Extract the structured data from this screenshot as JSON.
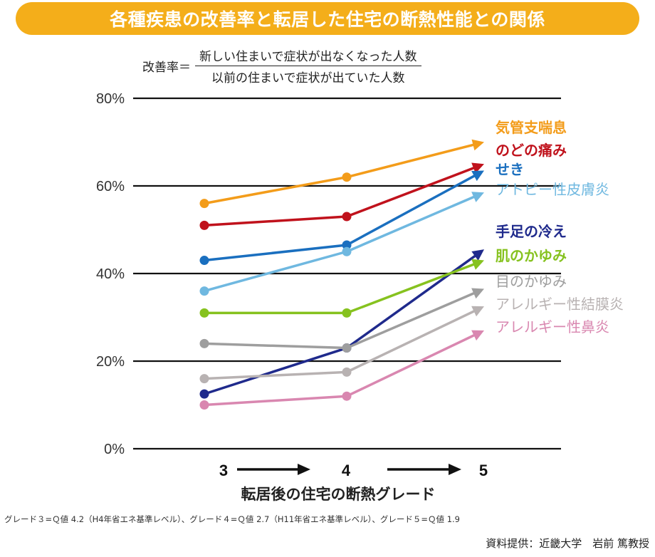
{
  "header": {
    "title": "各種疾患の改善率と転居した住宅の断熱性能との関係",
    "banner_color": "#f4ae1a"
  },
  "formula": {
    "lhs": "改善率＝",
    "numerator": "新しい住まいで症状が出なくなった人数",
    "denominator": "以前の住まいで症状が出ていた人数"
  },
  "chart_data": {
    "type": "line",
    "title": "各種疾患の改善率と転居した住宅の断熱性能との関係",
    "xlabel": "転居後の住宅の断熱グレード",
    "ylabel": "改善率",
    "x": [
      "3",
      "4",
      "5"
    ],
    "y_ticks": [
      "0%",
      "20%",
      "40%",
      "60%",
      "80%"
    ],
    "y_tick_values": [
      0,
      20,
      40,
      60,
      80
    ],
    "ylim": [
      0,
      80
    ],
    "grid": true,
    "legend": "right (labels at line ends)",
    "series": [
      {
        "name": "気管支喘息",
        "color": "#f39c1a",
        "values": [
          56,
          62,
          70
        ]
      },
      {
        "name": "のどの痛み",
        "color": "#c0121c",
        "values": [
          51,
          53,
          65
        ]
      },
      {
        "name": "せき",
        "color": "#1a6fbf",
        "values": [
          43,
          46.5,
          63.5
        ]
      },
      {
        "name": "アトピー性皮膚炎",
        "color": "#6fb8e0",
        "values": [
          36,
          45,
          58.5
        ]
      },
      {
        "name": "手足の冷え",
        "color": "#1f2a8c",
        "values": [
          12.5,
          23,
          45.5
        ]
      },
      {
        "name": "肌のかゆみ",
        "color": "#86c21f",
        "values": [
          31,
          31,
          43
        ]
      },
      {
        "name": "目のかゆみ",
        "color": "#9e9e9e",
        "values": [
          24,
          23,
          36.5
        ]
      },
      {
        "name": "アレルギー性結膜炎",
        "color": "#b8b2b2",
        "values": [
          16,
          17.5,
          32.5
        ]
      },
      {
        "name": "アレルギー性鼻炎",
        "color": "#d987b0",
        "values": [
          10,
          12,
          27
        ]
      }
    ]
  },
  "footer": {
    "xlabel": "転居後の住宅の断熱グレード",
    "note": "グレード３=Ｑ値 4.2（H4年省エネ基準レベル）、グレード４=Ｑ値 2.7（H11年省エネ基準レベル）、グレード５=Ｑ値 1.9",
    "source": "資料提供：近畿大学　岩前 篤教授"
  }
}
